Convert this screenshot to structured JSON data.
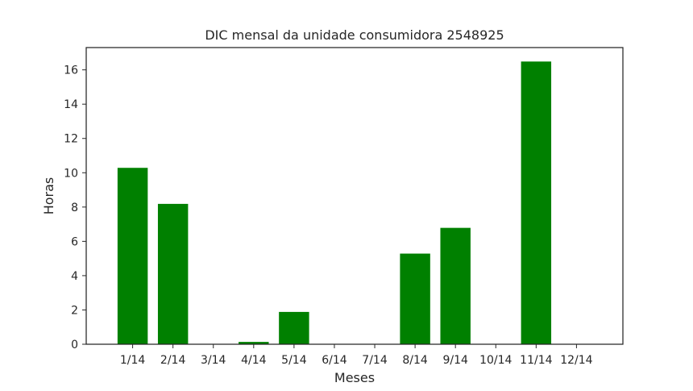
{
  "chart_data": {
    "type": "bar",
    "title": "DIC mensal da unidade consumidora 2548925",
    "xlabel": "Meses",
    "ylabel": "Horas",
    "categories": [
      "1/14",
      "2/14",
      "3/14",
      "4/14",
      "5/14",
      "6/14",
      "7/14",
      "8/14",
      "9/14",
      "10/14",
      "11/14",
      "12/14"
    ],
    "values": [
      10.3,
      8.2,
      0,
      0.15,
      1.9,
      0,
      0,
      5.3,
      6.8,
      0,
      16.5,
      0
    ],
    "yticks": [
      0,
      2,
      4,
      6,
      8,
      10,
      12,
      14,
      16
    ],
    "ylim": [
      0,
      17.3
    ],
    "grid": false,
    "bar_color": "#008000",
    "axis_color": "#262626"
  }
}
